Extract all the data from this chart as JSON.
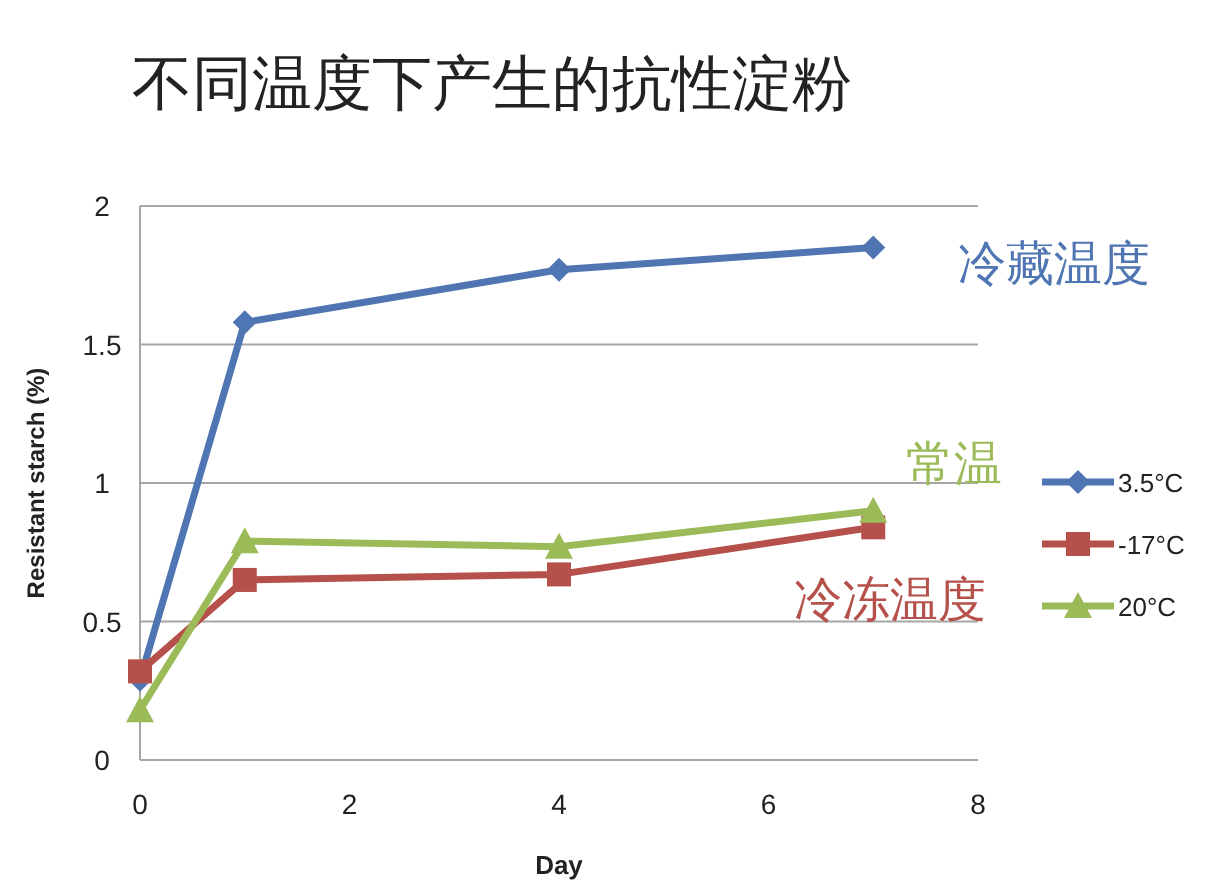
{
  "chart_data": {
    "type": "line",
    "title": "不同温度下产生的抗性淀粉",
    "xlabel": "Day",
    "ylabel": "Resistant starch (%)",
    "x": [
      0,
      1,
      4,
      7
    ],
    "series": [
      {
        "name": "3.5°C",
        "color": "#4f75b3",
        "values": [
          0.29,
          1.58,
          1.77,
          1.85
        ],
        "marker": "diamond"
      },
      {
        "name": "-17°C",
        "color": "#b5504b",
        "values": [
          0.32,
          0.65,
          0.67,
          0.84
        ],
        "marker": "square"
      },
      {
        "name": "20°C",
        "color": "#9bbb59",
        "values": [
          0.18,
          0.79,
          0.77,
          0.9
        ],
        "marker": "triangle"
      }
    ],
    "annotations": [
      "冷藏温度",
      "冷冻温度",
      "常温"
    ],
    "xlim": [
      0,
      8
    ],
    "xticks": [
      0,
      2,
      4,
      6,
      8
    ],
    "ylim": [
      0,
      2
    ],
    "yticks": [
      0,
      0.5,
      1,
      1.5,
      2
    ],
    "grid": "y",
    "legend": "right",
    "line_style": "solid"
  }
}
